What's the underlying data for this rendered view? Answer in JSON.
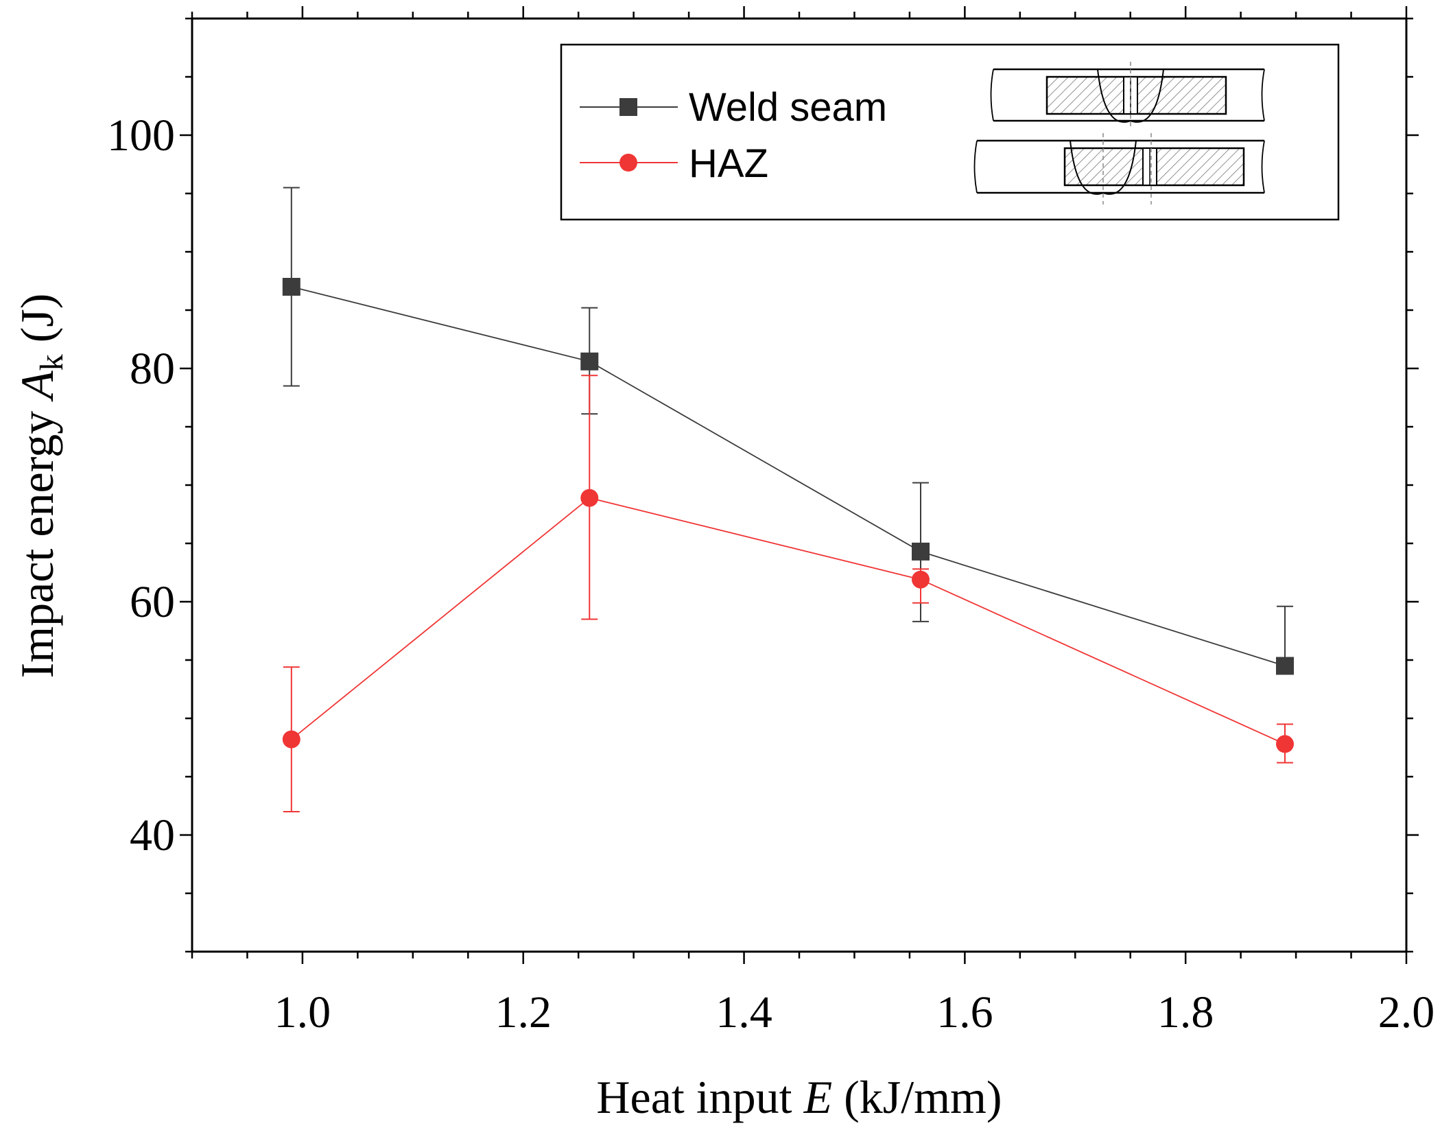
{
  "chart_data": {
    "type": "line",
    "title": "",
    "xlabel": {
      "prefix": "Heat input ",
      "var": "E",
      "suffix": " (kJ/mm)"
    },
    "ylabel": {
      "prefix": "Impact energy ",
      "var": "A",
      "sub": "k",
      "suffix": " (J)"
    },
    "xlim": [
      0.9,
      2.0
    ],
    "ylim": [
      30,
      110
    ],
    "x_ticks": [
      1.0,
      1.2,
      1.4,
      1.6,
      1.8,
      2.0
    ],
    "x_tick_labels": [
      "1.0",
      "1.2",
      "1.4",
      "1.6",
      "1.8",
      "2.0"
    ],
    "y_ticks": [
      40,
      60,
      80,
      100
    ],
    "y_tick_labels": [
      "40",
      "60",
      "80",
      "100"
    ],
    "grid": false,
    "legend_position": "top-right",
    "series": [
      {
        "name": "Weld seam",
        "marker": "square",
        "color": "#3c3c3c",
        "x": [
          0.99,
          1.26,
          1.56,
          1.89
        ],
        "y": [
          87.0,
          80.6,
          64.3,
          54.5
        ],
        "err_upper": [
          95.5,
          85.2,
          70.2,
          59.6
        ],
        "err_lower": [
          78.5,
          76.1,
          58.3,
          54.5
        ]
      },
      {
        "name": "HAZ",
        "marker": "circle",
        "color": "#f03535",
        "x": [
          0.99,
          1.26,
          1.56,
          1.89
        ],
        "y": [
          48.2,
          68.9,
          61.9,
          47.8
        ],
        "err_upper": [
          54.4,
          79.4,
          62.8,
          49.5
        ],
        "err_lower": [
          42.0,
          58.5,
          59.9,
          46.2
        ]
      }
    ],
    "inset": {
      "description_hidden": true
    }
  }
}
